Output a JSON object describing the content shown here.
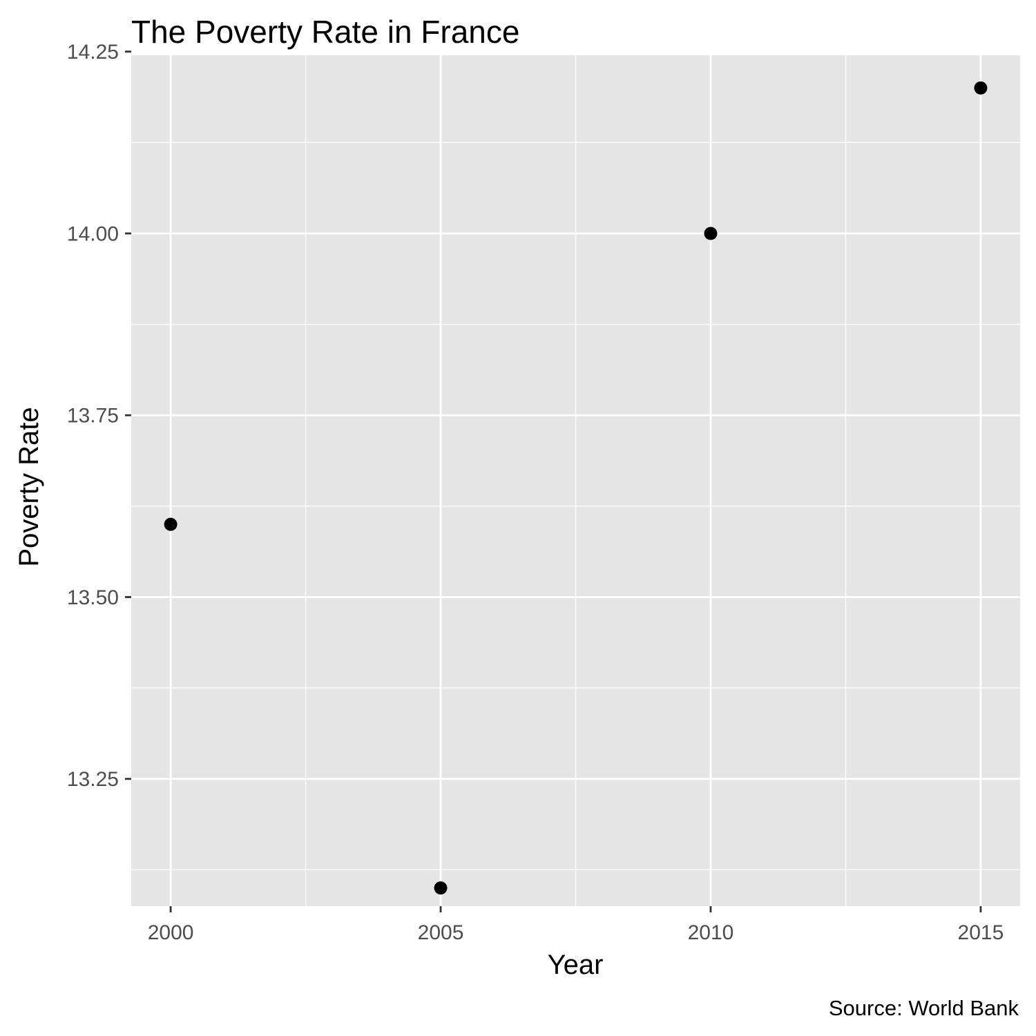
{
  "chart_data": {
    "type": "scatter",
    "title": "The Poverty Rate in France",
    "xlabel": "Year",
    "ylabel": "Poverty Rate",
    "caption": "Source: World Bank",
    "x": [
      2000,
      2005,
      2010,
      2015
    ],
    "y": [
      13.6,
      13.1,
      14.0,
      14.2
    ],
    "xlim": [
      1999.27,
      2015.73
    ],
    "ylim": [
      13.075,
      14.245
    ],
    "x_ticks": [
      2000,
      2005,
      2010,
      2015
    ],
    "x_tick_labels": [
      "2000",
      "2005",
      "2010",
      "2015"
    ],
    "y_ticks": [
      13.25,
      13.5,
      13.75,
      14.0,
      14.25
    ],
    "y_tick_labels": [
      "13.25",
      "13.50",
      "13.75",
      "14.00",
      "14.25"
    ],
    "x_minor_ticks": [
      2002.5,
      2007.5,
      2012.5
    ],
    "y_minor_ticks": [
      13.125,
      13.375,
      13.625,
      13.875,
      14.125
    ],
    "grid": true,
    "legend": "none",
    "colors": {
      "panel": "#e5e5e5",
      "grid": "#ffffff",
      "point": "#000000",
      "tick_text": "#4d4d4d"
    }
  }
}
